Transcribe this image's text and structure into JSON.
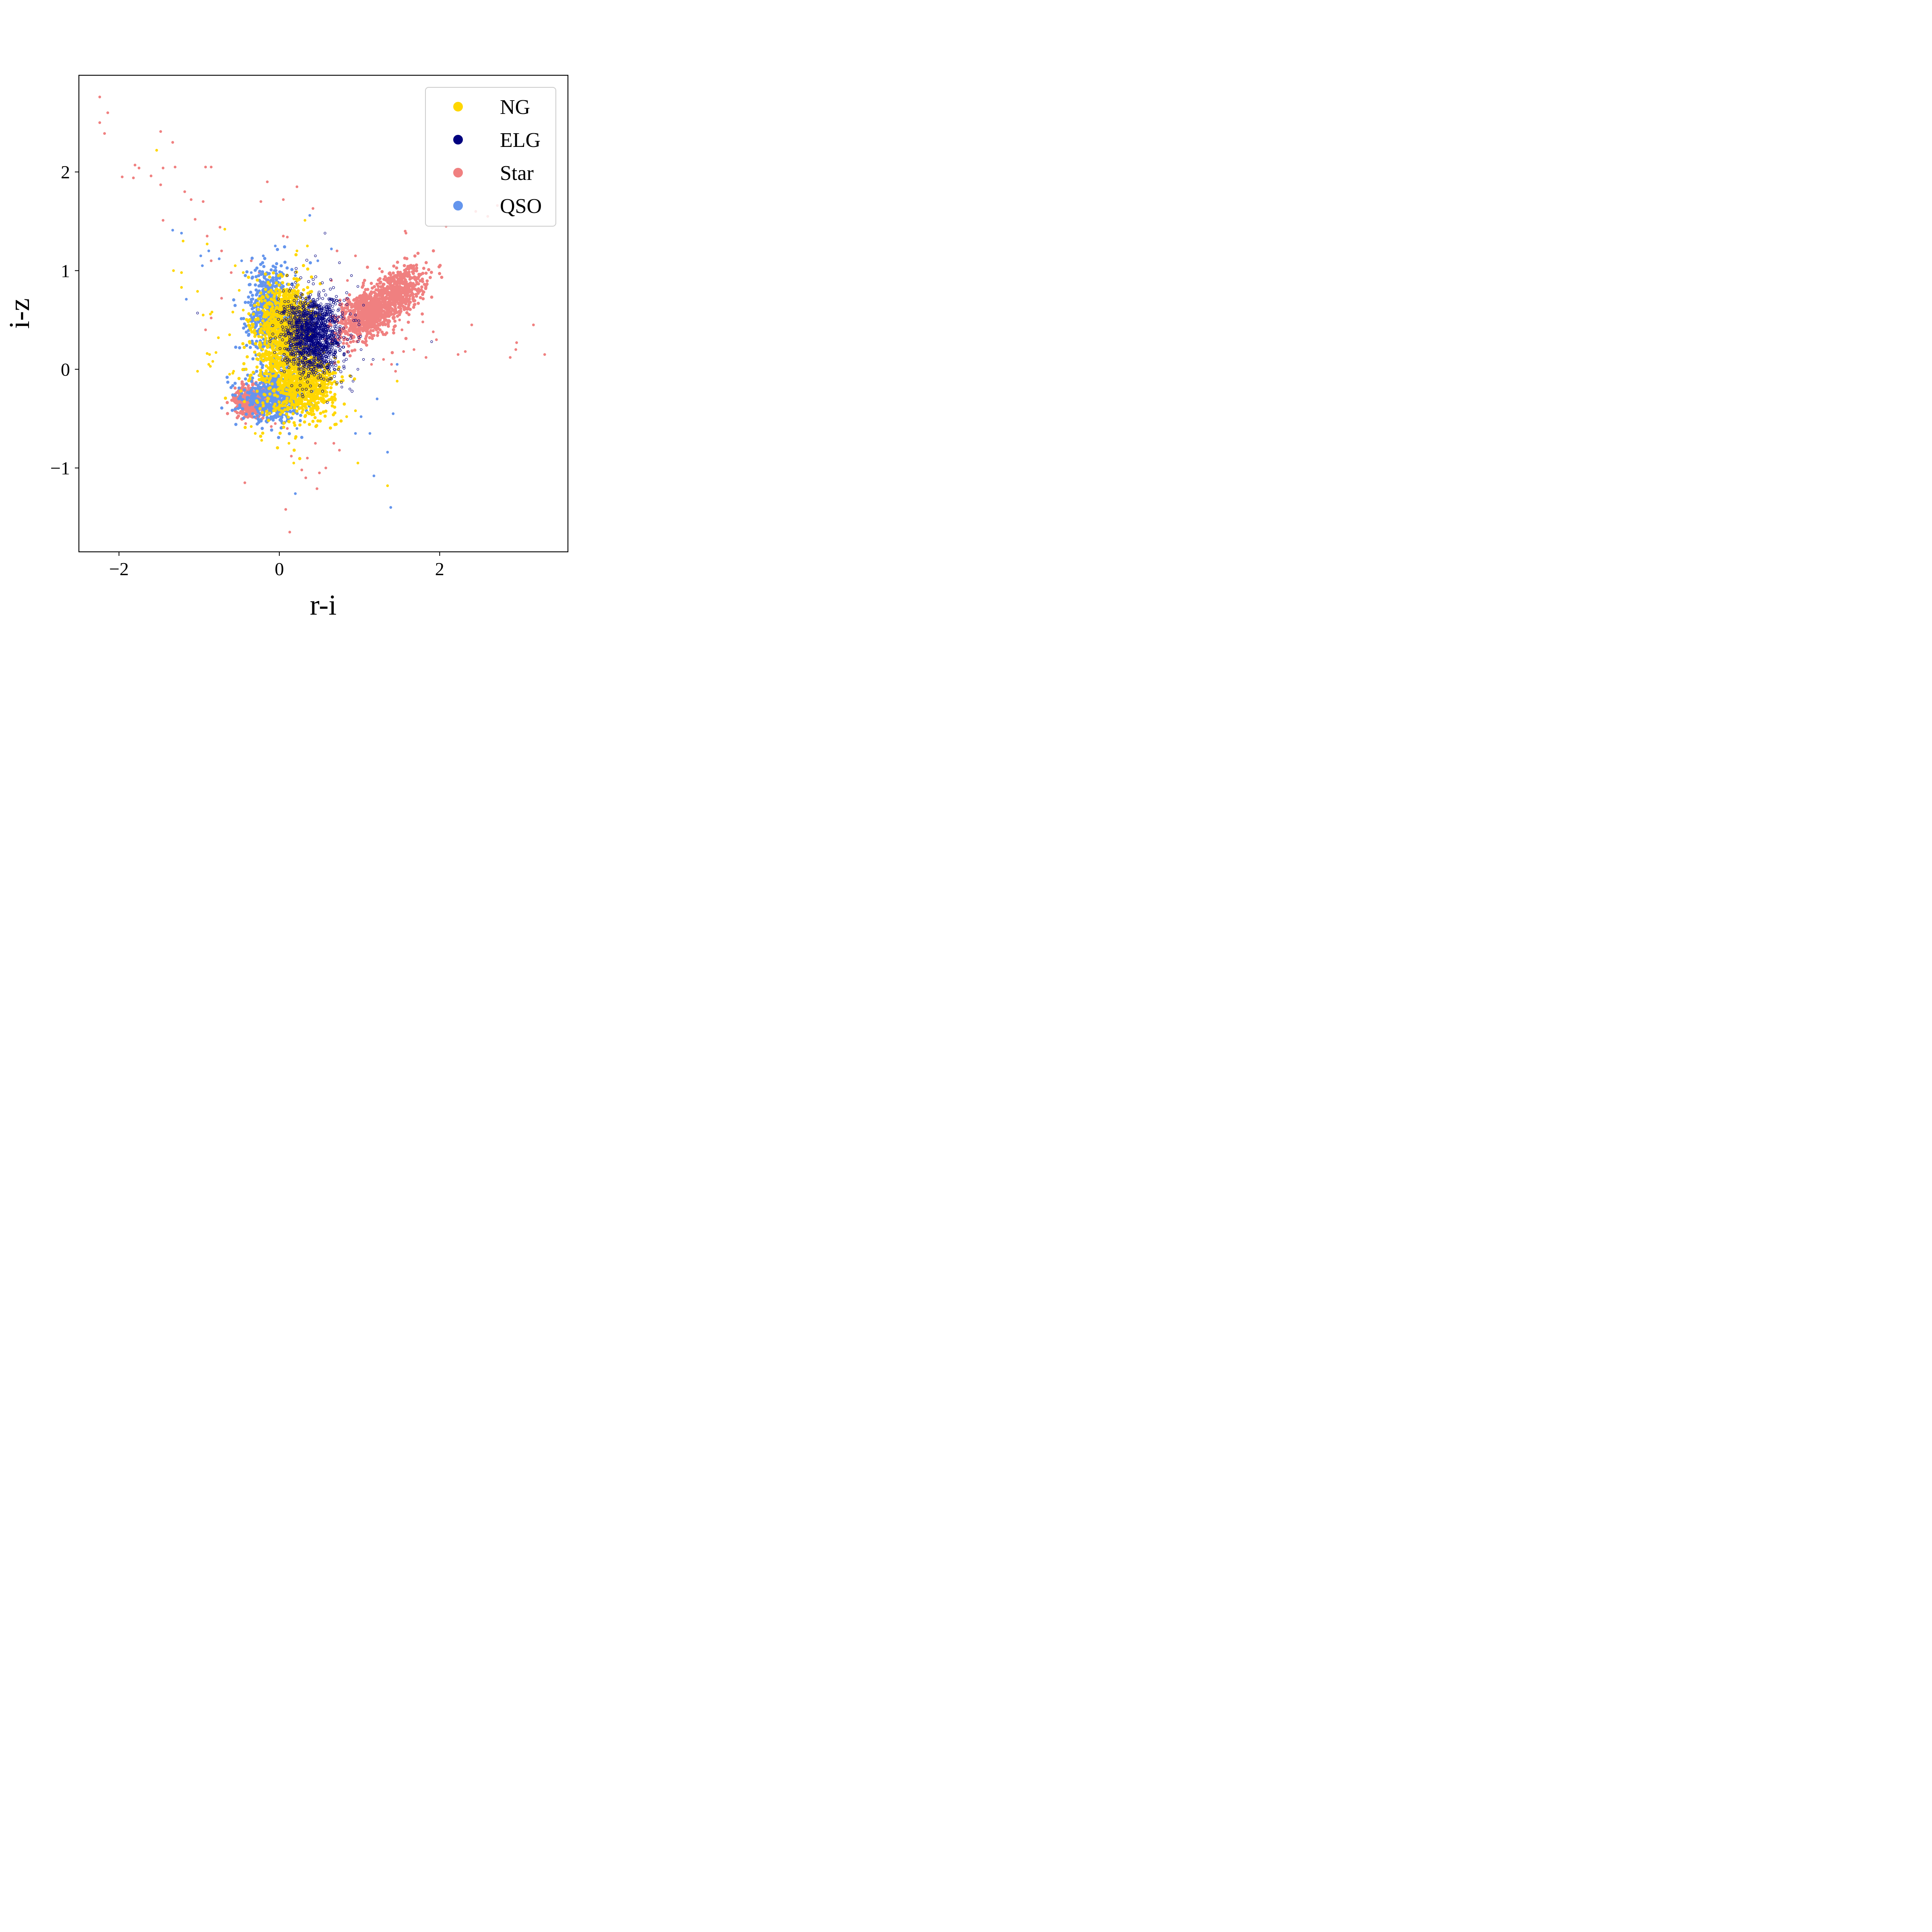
{
  "chart_data": {
    "type": "scatter",
    "title": "",
    "xlabel": "r-i",
    "ylabel": "i-z",
    "xlim": [
      -2.5,
      3.6
    ],
    "ylim": [
      -1.85,
      2.98
    ],
    "xticks": [
      -2,
      0,
      2
    ],
    "xtick_labels": [
      "−2",
      "0",
      "2"
    ],
    "yticks": [
      -1,
      0,
      1,
      2
    ],
    "ytick_labels": [
      "−1",
      "0",
      "1",
      "2"
    ],
    "grid": false,
    "legend": {
      "placement": "top-right"
    },
    "series": [
      {
        "name": "NG",
        "color": "#FFD700",
        "marker": "filled",
        "points": [
          [
            -1.53,
            2.22
          ],
          [
            -0.68,
            1.42
          ],
          [
            -0.9,
            1.27
          ],
          [
            0.32,
            1.51
          ],
          [
            -1.2,
            1.3
          ],
          [
            -1.32,
            1.0
          ],
          [
            -1.22,
            0.98
          ],
          [
            -1.22,
            0.83
          ],
          [
            -1.02,
            0.79
          ],
          [
            -0.95,
            0.55
          ],
          [
            -0.86,
            0.56
          ],
          [
            -0.84,
            0.58
          ],
          [
            -0.76,
            0.32
          ],
          [
            -0.79,
            0.17
          ],
          [
            -0.83,
            0.08
          ],
          [
            -0.87,
            0.15
          ],
          [
            -0.9,
            0.16
          ],
          [
            -0.86,
            0.03
          ],
          [
            -0.88,
            0.05
          ],
          [
            -1.02,
            -0.02
          ],
          [
            -0.62,
            0.35
          ],
          [
            -0.57,
            -0.02
          ],
          [
            -0.58,
            -0.04
          ],
          [
            -0.62,
            -0.05
          ],
          [
            -0.35,
            -0.58
          ],
          [
            -0.3,
            -0.65
          ],
          [
            -0.22,
            -0.72
          ],
          [
            0.18,
            -0.95
          ],
          [
            0.12,
            -0.75
          ],
          [
            0.2,
            -0.7
          ],
          [
            0.98,
            -0.95
          ],
          [
            1.35,
            -1.18
          ],
          [
            1.47,
            -0.12
          ],
          [
            0.84,
            -0.48
          ],
          [
            0.7,
            -0.3
          ],
          [
            0.95,
            -0.42
          ],
          [
            0.35,
            1.25
          ],
          [
            0.22,
            1.2
          ],
          [
            -0.55,
            1.05
          ],
          [
            -0.45,
            0.98
          ],
          [
            -0.58,
            0.58
          ],
          [
            -0.5,
            0.8
          ],
          [
            -0.45,
            0.6
          ]
        ],
        "dense_regions": [
          {
            "x": 0.05,
            "y": 0.15,
            "sx": 0.2,
            "sy": 0.3
          },
          {
            "x": 0.35,
            "y": -0.15,
            "sx": 0.18,
            "sy": 0.15
          },
          {
            "x": 0.1,
            "y": 0.5,
            "sx": 0.15,
            "sy": 0.2
          }
        ]
      },
      {
        "name": "ELG",
        "color": "#00007F",
        "marker": "open",
        "points": [
          [
            0.98,
            0.84
          ],
          [
            1.05,
            0.65
          ],
          [
            0.75,
            1.08
          ],
          [
            0.9,
            0.95
          ],
          [
            0.85,
            0.72
          ],
          [
            0.95,
            0.55
          ],
          [
            1.02,
            0.2
          ],
          [
            1.05,
            0.1
          ],
          [
            0.98,
            0.0
          ],
          [
            0.92,
            -0.12
          ],
          [
            0.88,
            -0.2
          ],
          [
            0.78,
            -0.18
          ],
          [
            1.17,
            0.1
          ],
          [
            1.9,
            0.28
          ],
          [
            0.57,
            1.38
          ],
          [
            0.45,
            1.15
          ],
          [
            -1.02,
            0.57
          ],
          [
            0.1,
            0.95
          ],
          [
            0.2,
            0.88
          ]
        ],
        "dense_regions": [
          {
            "x": 0.42,
            "y": 0.35,
            "sx": 0.18,
            "sy": 0.2
          }
        ]
      },
      {
        "name": "Star",
        "color": "#F08080",
        "marker": "filled",
        "points": [
          [
            -2.24,
            2.76
          ],
          [
            -2.14,
            2.6
          ],
          [
            -2.24,
            2.5
          ],
          [
            -2.18,
            2.39
          ],
          [
            -1.48,
            2.41
          ],
          [
            -1.33,
            2.3
          ],
          [
            -1.96,
            1.95
          ],
          [
            -1.8,
            2.07
          ],
          [
            -1.75,
            2.04
          ],
          [
            -1.82,
            1.94
          ],
          [
            -1.6,
            1.96
          ],
          [
            -1.45,
            2.04
          ],
          [
            -1.3,
            2.05
          ],
          [
            -1.48,
            1.87
          ],
          [
            -0.92,
            2.05
          ],
          [
            -0.85,
            2.05
          ],
          [
            -1.18,
            1.8
          ],
          [
            -1.1,
            1.72
          ],
          [
            -0.95,
            1.7
          ],
          [
            -1.45,
            1.51
          ],
          [
            -1.05,
            1.52
          ],
          [
            -0.74,
            1.44
          ],
          [
            -0.9,
            1.35
          ],
          [
            -0.72,
            1.2
          ],
          [
            -0.85,
            1.1
          ],
          [
            -0.6,
            0.98
          ],
          [
            -0.72,
            0.72
          ],
          [
            -0.85,
            0.52
          ],
          [
            -0.92,
            0.4
          ],
          [
            -0.35,
            1.1
          ],
          [
            -0.25,
            0.98
          ],
          [
            -0.15,
            0.85
          ],
          [
            -0.15,
            1.9
          ],
          [
            -0.23,
            1.7
          ],
          [
            0.05,
            1.72
          ],
          [
            0.22,
            1.85
          ],
          [
            0.42,
            1.63
          ],
          [
            0.05,
            1.35
          ],
          [
            0.1,
            1.34
          ],
          [
            0.72,
            1.2
          ],
          [
            0.95,
            1.15
          ],
          [
            0.65,
            0.9
          ],
          [
            0.85,
            0.9
          ],
          [
            1.25,
            1.02
          ],
          [
            1.57,
            1.4
          ],
          [
            1.58,
            1.38
          ],
          [
            2.08,
            1.45
          ],
          [
            2.45,
            1.6
          ],
          [
            2.6,
            1.55
          ],
          [
            2.72,
            1.66
          ],
          [
            1.35,
            0.62
          ],
          [
            1.5,
            0.5
          ],
          [
            1.53,
            0.4
          ],
          [
            1.79,
            0.48
          ],
          [
            1.92,
            0.38
          ],
          [
            1.96,
            0.3
          ],
          [
            1.55,
            0.18
          ],
          [
            1.3,
            0.1
          ],
          [
            1.15,
            0.05
          ],
          [
            1.4,
            0.05
          ],
          [
            1.45,
            -0.02
          ],
          [
            1.68,
            0.2
          ],
          [
            1.83,
            0.12
          ],
          [
            2.23,
            0.15
          ],
          [
            2.32,
            0.18
          ],
          [
            2.4,
            0.45
          ],
          [
            2.95,
            0.2
          ],
          [
            2.88,
            0.12
          ],
          [
            2.96,
            0.27
          ],
          [
            3.17,
            0.45
          ],
          [
            3.31,
            0.15
          ],
          [
            -0.43,
            -1.15
          ],
          [
            0.08,
            -1.42
          ],
          [
            0.13,
            -1.65
          ],
          [
            0.33,
            -1.1
          ],
          [
            0.5,
            -1.05
          ],
          [
            0.47,
            -1.21
          ],
          [
            0.58,
            -1.0
          ],
          [
            0.28,
            -1.02
          ],
          [
            0.15,
            -0.88
          ],
          [
            0.35,
            -0.9
          ],
          [
            0.68,
            -0.75
          ],
          [
            0.75,
            -0.82
          ],
          [
            0.45,
            -0.75
          ],
          [
            -0.05,
            -0.55
          ],
          [
            -0.1,
            -0.58
          ],
          [
            0.1,
            -0.6
          ],
          [
            -0.42,
            -0.55
          ],
          [
            -0.35,
            -0.48
          ]
        ],
        "dense_regions": [
          {
            "x": 1.45,
            "y": 0.75,
            "sx": 0.22,
            "sy": 0.12,
            "dir": [
              0.83,
              0.48
            ]
          },
          {
            "x": 1.05,
            "y": 0.55,
            "sx": 0.18,
            "sy": 0.12,
            "dir": [
              0.83,
              0.48
            ]
          },
          {
            "x": -0.35,
            "y": -0.32,
            "sx": 0.1,
            "sy": 0.07
          }
        ]
      },
      {
        "name": "QSO",
        "color": "#6495ED",
        "marker": "filled",
        "points": [
          [
            -1.33,
            1.41
          ],
          [
            -1.22,
            1.38
          ],
          [
            -0.96,
            1.05
          ],
          [
            -0.98,
            1.15
          ],
          [
            -0.88,
            1.2
          ],
          [
            -0.75,
            1.12
          ],
          [
            -1.16,
            0.71
          ],
          [
            0.38,
            1.56
          ],
          [
            0.65,
            1.22
          ],
          [
            0.48,
            1.1
          ],
          [
            -0.47,
            1.1
          ],
          [
            -0.2,
            1.15
          ],
          [
            -0.05,
            1.25
          ],
          [
            -0.35,
            0.98
          ],
          [
            0.2,
            0.95
          ],
          [
            0.95,
            -0.65
          ],
          [
            1.02,
            -0.48
          ],
          [
            1.13,
            -0.65
          ],
          [
            1.22,
            -0.3
          ],
          [
            1.42,
            -0.45
          ],
          [
            1.35,
            -0.84
          ],
          [
            1.18,
            -1.08
          ],
          [
            0.2,
            -1.26
          ],
          [
            1.39,
            -1.4
          ],
          [
            1.47,
            0.05
          ],
          [
            0.12,
            -0.5
          ],
          [
            0.05,
            -0.55
          ],
          [
            0.22,
            -0.6
          ]
        ],
        "dense_regions": [
          {
            "x": -0.12,
            "y": 0.6,
            "sx": 0.14,
            "sy": 0.22
          },
          {
            "x": -0.05,
            "y": -0.28,
            "sx": 0.2,
            "sy": 0.12
          }
        ]
      }
    ]
  }
}
